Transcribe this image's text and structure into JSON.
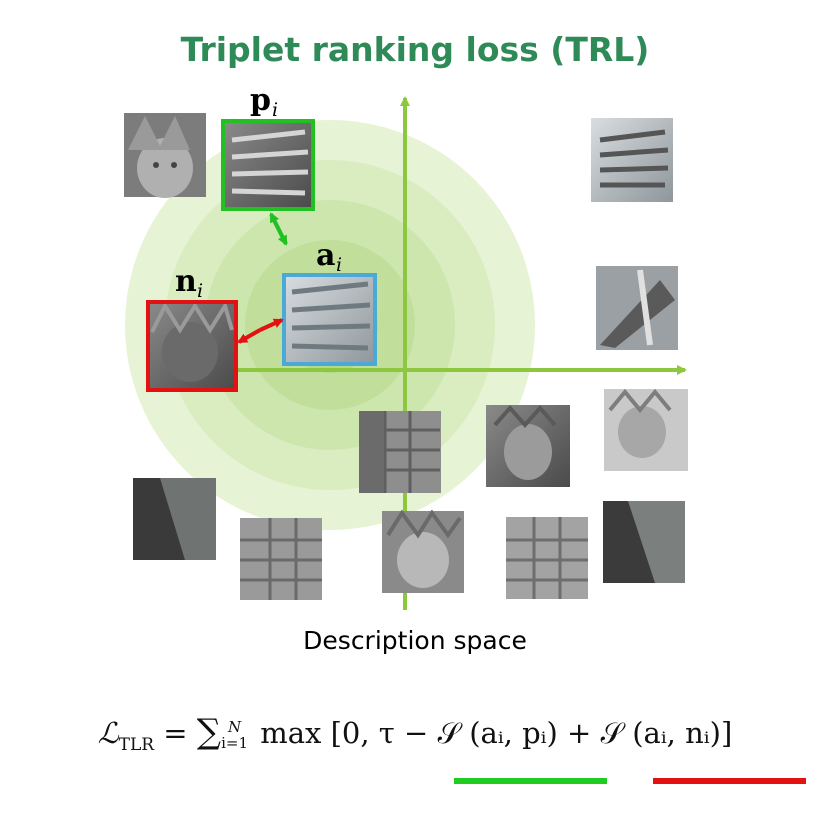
{
  "title": "Triplet ranking loss (TRL)",
  "caption": "Description space",
  "labels": {
    "positive": "p",
    "anchor": "a",
    "negative": "n",
    "index": "i"
  },
  "formula": {
    "lhs": "ℒ",
    "lhs_sub": "TLR",
    "sum_upper": "N",
    "sum_lower": "i=1",
    "body_start": "max [0, τ − ",
    "s_pos": "𝒮 (aᵢ, pᵢ)",
    "plus": " + ",
    "s_neg": "𝒮 (aᵢ, nᵢ)",
    "close": "]"
  },
  "colors": {
    "title": "#2e8b57",
    "axes": "#8dc63f",
    "positive": "#22c022",
    "negative": "#e31212",
    "anchor": "#4aa9d6",
    "halo": "#c9e6a4",
    "underline_pos": "#1fcc1f",
    "underline_neg": "#e31212"
  },
  "icons": {
    "positive_patch": "statue-crown-spikes-icon",
    "anchor_patch": "statue-crown-spikes-icon",
    "negative_patch": "statue-face-icon",
    "other_patches": [
      "statue-face-icon",
      "statue-crown-spikes-icon",
      "statue-torch-hand-icon",
      "statue-face-icon",
      "statue-shadow-icon",
      "statue-brick-base-icon",
      "statue-face-icon",
      "statue-brick-base-icon",
      "statue-shadow-icon",
      "statue-brick-base-icon"
    ]
  }
}
